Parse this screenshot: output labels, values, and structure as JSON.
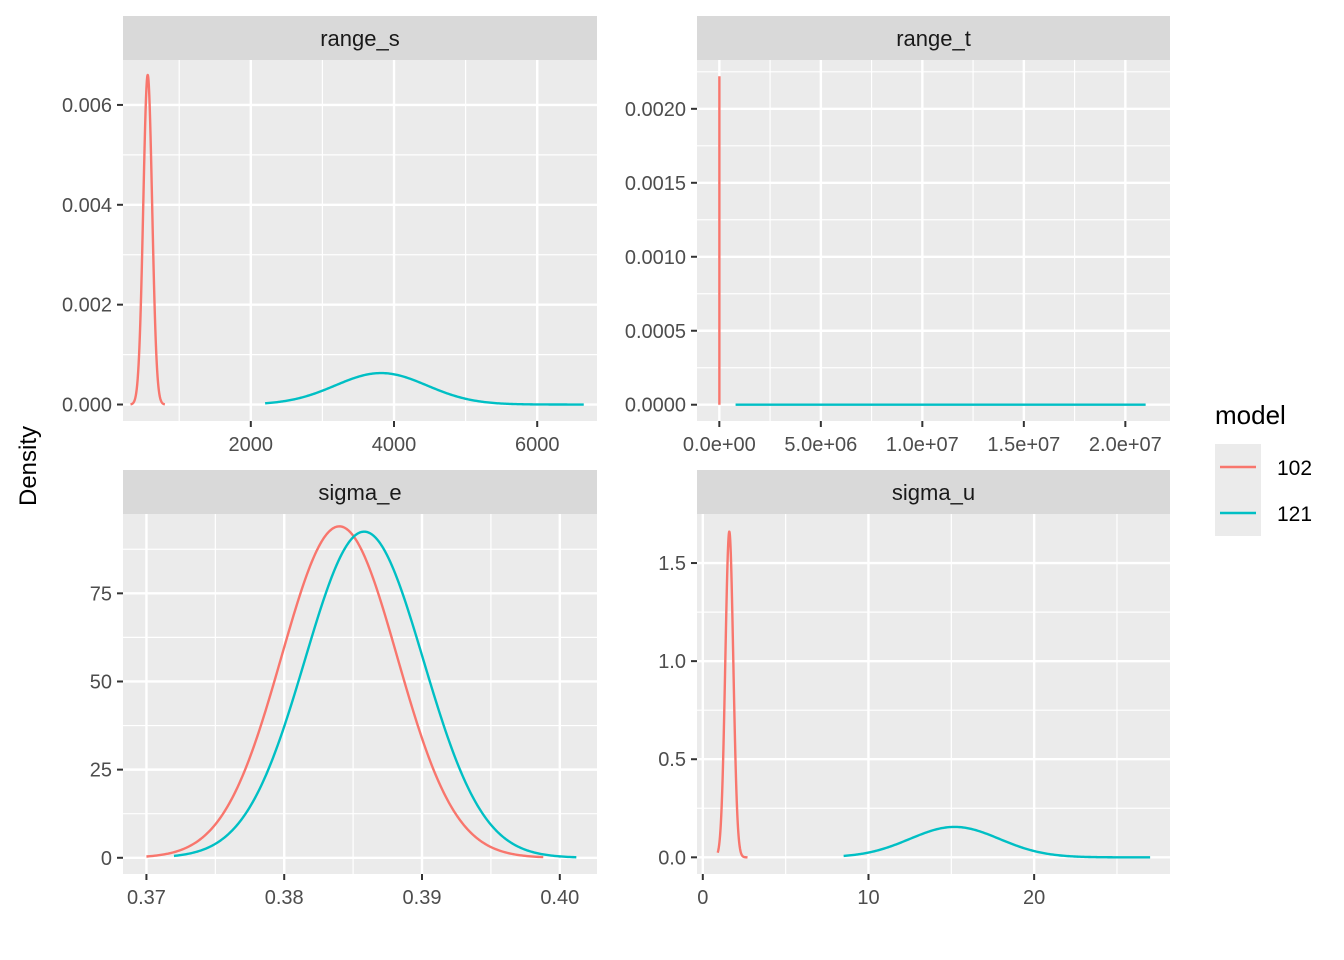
{
  "chart_data": {
    "type": "line",
    "ylabel": "Density",
    "xlabel": "",
    "grid": true,
    "legend": {
      "title": "model",
      "position": "right",
      "entries": [
        {
          "label": "102",
          "color": "#F8766D"
        },
        {
          "label": "121",
          "color": "#00BFC4"
        }
      ]
    },
    "facets": [
      {
        "label": "range_s",
        "xlim": [
          215,
          6835
        ],
        "ylim": [
          -0.00033,
          0.0069
        ],
        "xticks": [
          2000,
          4000,
          6000
        ],
        "xtick_labels": [
          "2000",
          "4000",
          "6000"
        ],
        "yticks": [
          0,
          0.002,
          0.004,
          0.006
        ],
        "ytick_labels": [
          "0.000",
          "0.002",
          "0.004",
          "0.006"
        ],
        "series": [
          {
            "name": "102",
            "kind": "normal",
            "mean": 560,
            "peak": 0.0066,
            "sd": 62,
            "range": [
              320,
              800
            ]
          },
          {
            "name": "121",
            "kind": "normal",
            "mean": 3820,
            "peak": 0.00063,
            "sd": 640,
            "range": [
              2200,
              6650
            ]
          }
        ]
      },
      {
        "label": "range_t",
        "xlim": [
          -1100000,
          22200000
        ],
        "ylim": [
          -0.00011,
          0.00233
        ],
        "xticks": [
          0,
          5000000,
          10000000,
          15000000,
          20000000
        ],
        "xtick_labels": [
          "0.0e+00",
          "5.0e+06",
          "1.0e+07",
          "1.5e+07",
          "2.0e+07"
        ],
        "yticks": [
          0,
          0.0005,
          0.001,
          0.0015,
          0.002
        ],
        "ytick_labels": [
          "0.0000",
          "0.0005",
          "0.0010",
          "0.0015",
          "0.0020"
        ],
        "series": [
          {
            "name": "102",
            "kind": "spike",
            "x": 2000,
            "peak": 0.00222
          },
          {
            "name": "121",
            "kind": "flat",
            "range": [
              800000,
              21000000
            ],
            "value": 0
          }
        ]
      },
      {
        "label": "sigma_e",
        "xlim": [
          0.3683,
          0.4027
        ],
        "ylim": [
          -4.6,
          97.5
        ],
        "xticks": [
          0.37,
          0.38,
          0.39,
          0.4
        ],
        "xtick_labels": [
          "0.37",
          "0.38",
          "0.39",
          "0.40"
        ],
        "yticks": [
          0,
          25,
          50,
          75
        ],
        "ytick_labels": [
          "0",
          "25",
          "50",
          "75"
        ],
        "series": [
          {
            "name": "102",
            "kind": "normal",
            "mean": 0.384,
            "peak": 94,
            "sd": 0.0042,
            "range": [
              0.37,
              0.3988
            ]
          },
          {
            "name": "121",
            "kind": "normal",
            "mean": 0.3858,
            "peak": 92.5,
            "sd": 0.0043,
            "range": [
              0.372,
              0.4012
            ]
          }
        ]
      },
      {
        "label": "sigma_u",
        "xlim": [
          -0.35,
          28.2
        ],
        "ylim": [
          -0.085,
          1.75
        ],
        "xticks": [
          0,
          10,
          20
        ],
        "xtick_labels": [
          "0",
          "10",
          "20"
        ],
        "yticks": [
          0,
          0.5,
          1.0,
          1.5
        ],
        "ytick_labels": [
          "0.0",
          "0.5",
          "1.0",
          "1.5"
        ],
        "series": [
          {
            "name": "102",
            "kind": "normal",
            "mean": 1.6,
            "peak": 1.66,
            "sd": 0.24,
            "range": [
              0.9,
              2.7
            ]
          },
          {
            "name": "121",
            "kind": "normal",
            "mean": 15.2,
            "peak": 0.155,
            "sd": 2.7,
            "range": [
              8.5,
              27
            ]
          }
        ]
      }
    ]
  }
}
